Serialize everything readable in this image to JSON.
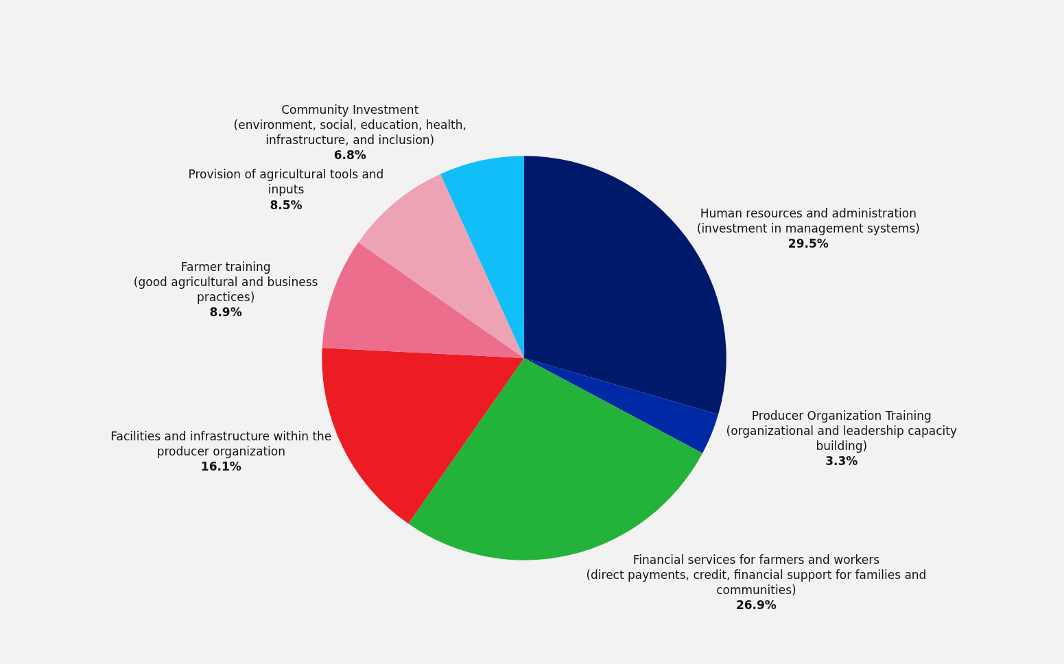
{
  "chart_data": {
    "type": "pie",
    "categories": [
      "Human resources and administration\n(investment in management systems)",
      "Producer Organization Training\n(organizational and leadership capacity\nbuilding)",
      "Financial services for farmers and workers\n(direct payments, credit, financial support for families and\ncommunities)",
      "Facilities and infrastructure within the\nproducer organization",
      "Farmer training\n(good agricultural and business\npractices)",
      "Provision of agricultural tools and\ninputs",
      "Community Investment\n(environment, social, education, health,\ninfrastructure, and inclusion)"
    ],
    "values": [
      29.5,
      3.3,
      26.9,
      16.1,
      8.9,
      8.5,
      6.8
    ],
    "value_labels": [
      "29.5%",
      "3.3%",
      "26.9%",
      "16.1%",
      "8.9%",
      "8.5%",
      "6.8%"
    ],
    "colors": [
      "#001a6b",
      "#0029a5",
      "#23b33a",
      "#ed1c24",
      "#ed6e8c",
      "#eea3b5",
      "#12bef8"
    ],
    "legend": false
  }
}
